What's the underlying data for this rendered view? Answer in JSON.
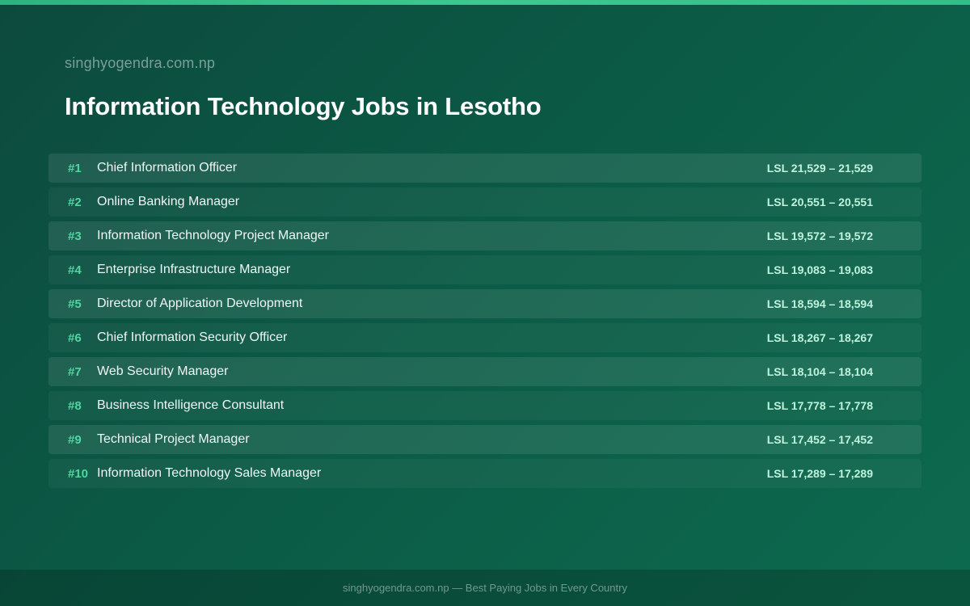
{
  "header": {
    "site": "singhyogendra.com.np",
    "title": "Information Technology Jobs in Lesotho"
  },
  "jobs": [
    {
      "rank": "#1",
      "title": "Chief Information Officer",
      "salary": "LSL 21,529 – 21,529"
    },
    {
      "rank": "#2",
      "title": "Online Banking Manager",
      "salary": "LSL 20,551 – 20,551"
    },
    {
      "rank": "#3",
      "title": "Information Technology Project Manager",
      "salary": "LSL 19,572 – 19,572"
    },
    {
      "rank": "#4",
      "title": "Enterprise Infrastructure Manager",
      "salary": "LSL 19,083 – 19,083"
    },
    {
      "rank": "#5",
      "title": "Director of Application Development",
      "salary": "LSL 18,594 – 18,594"
    },
    {
      "rank": "#6",
      "title": "Chief Information Security Officer",
      "salary": "LSL 18,267 – 18,267"
    },
    {
      "rank": "#7",
      "title": "Web Security Manager",
      "salary": "LSL 18,104 – 18,104"
    },
    {
      "rank": "#8",
      "title": "Business Intelligence Consultant",
      "salary": "LSL 17,778 – 17,778"
    },
    {
      "rank": "#9",
      "title": "Technical Project Manager",
      "salary": "LSL 17,452 – 17,452"
    },
    {
      "rank": "#10",
      "title": "Information Technology Sales Manager",
      "salary": "LSL 17,289 – 17,289"
    }
  ],
  "footer": {
    "text": "singhyogendra.com.np — Best Paying Jobs in Every Country"
  },
  "colors": {
    "accent": "#3cc98f",
    "rank": "#4fd6a0",
    "salary": "#bff3dc",
    "background": "#0b5a45"
  }
}
